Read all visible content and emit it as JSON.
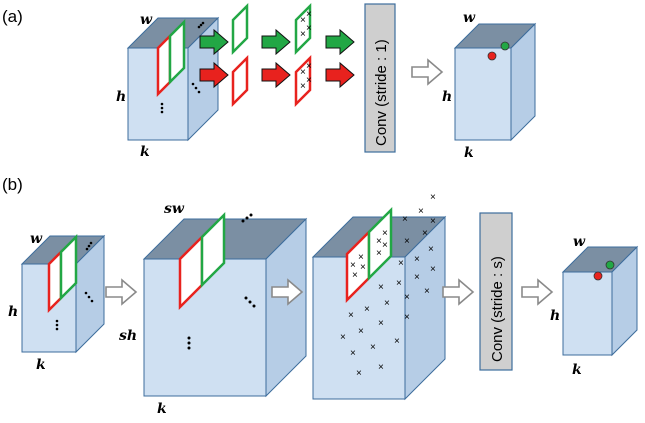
{
  "panels": {
    "a": {
      "label": "(a)",
      "conv_label": "Conv (stride : 1)"
    },
    "b": {
      "label": "(b)",
      "conv_label": "Conv (stride : s)"
    }
  },
  "dims": {
    "w": "w",
    "h": "h",
    "k": "k",
    "sw": "sw",
    "sh": "sh"
  },
  "colors": {
    "box_front": "#cfe0f2",
    "box_side": "#b6cde6",
    "box_top": "#7b8fa3",
    "edge": "#3d6d9c",
    "green": "#22a745",
    "red": "#e8221e",
    "conv_fill": "#cfcfcf",
    "hollow_arrow": "#8a8a8a"
  },
  "marks": {
    "cross": "×",
    "dot_red": "red-dot",
    "dot_green": "green-dot"
  }
}
